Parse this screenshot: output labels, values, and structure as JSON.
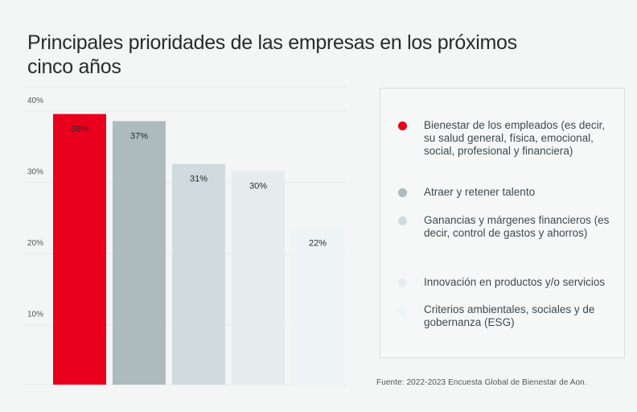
{
  "title": "Principales prioridades de las empresas en los próximos cinco años",
  "source": "Fuente: 2022-2023 Encuesta Global de Bienestar de Aon.",
  "chart_data": {
    "type": "bar",
    "title": "Principales prioridades de las empresas en los próximos cinco años",
    "xlabel": "",
    "ylabel": "",
    "ylim": [
      0,
      40
    ],
    "yticks": [
      10,
      20,
      30,
      40
    ],
    "ytick_labels": [
      "10%",
      "20%",
      "30%",
      "40%"
    ],
    "grid": true,
    "legend_position": "right",
    "categories": [
      "Bienestar de los empleados (es decir,  su salud general, física, emocional, social, profesional y financiera)",
      "Atraer y retener talento",
      "Ganancias y márgenes financieros (es decir, control de gastos y ahorros)",
      "Innovación en productos y/o servicios",
      "Criterios ambientales, sociales y de gobernanza (ESG)"
    ],
    "values": [
      38,
      37,
      31,
      30,
      22
    ],
    "value_labels": [
      "38%",
      "37%",
      "31%",
      "30%",
      "22%"
    ],
    "colors": [
      "#e8001c",
      "#adbbbe",
      "#cfdbdf",
      "#e5ecee",
      "#eef4f6"
    ]
  },
  "legend": [
    {
      "label": "Bienestar de los empleados (es decir,  su salud general, física, emocional, social, profesional y financiera)",
      "color": "#e8001c"
    },
    {
      "label": "Atraer y retener talento",
      "color": "#adbbbe"
    },
    {
      "label": "Ganancias y márgenes financieros (es decir, control de gastos y ahorros)",
      "color": "#cfdbdf"
    },
    {
      "label": "Innovación en productos y/o servicios",
      "color": "#e5ecee"
    },
    {
      "label": "Criterios ambientales, sociales y de gobernanza (ESG)",
      "color": "#eef4f6"
    }
  ]
}
